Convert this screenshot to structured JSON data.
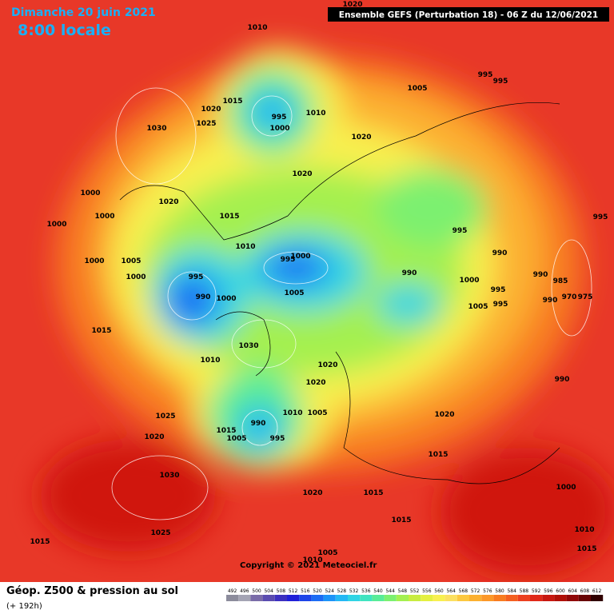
{
  "header": {
    "date": "Dimanche 20 juin 2021",
    "time": "8:00 locale",
    "model": "Ensemble GEFS  (Perturbation 18)  -  06 Z du 12/06/2021"
  },
  "footer": {
    "title": "Géop. Z500 & pression au sol",
    "lead": "(+ 192h)",
    "copyright": "Copyright © 2021 Meteociel.fr"
  },
  "scale": {
    "labels": [
      492,
      496,
      500,
      504,
      508,
      512,
      516,
      520,
      524,
      528,
      532,
      536,
      540,
      544,
      548,
      552,
      556,
      560,
      564,
      568,
      572,
      576,
      580,
      584,
      588,
      592,
      596,
      600,
      604,
      608,
      612
    ],
    "colors": [
      "#8c8c9c",
      "#a4a4b4",
      "#7a6ca8",
      "#5a4cb0",
      "#3c30c0",
      "#2020d8",
      "#1c44e8",
      "#1c6cf4",
      "#1c94f8",
      "#24b8f4",
      "#30d4e4",
      "#40e4c0",
      "#58ec98",
      "#7cf070",
      "#a4f050",
      "#c8ec40",
      "#e4f040",
      "#f8f050",
      "#fce060",
      "#fcc840",
      "#fcb030",
      "#fc9828",
      "#f87c20",
      "#f46020",
      "#ec4020",
      "#e02818",
      "#c81810",
      "#b01008",
      "#900808",
      "#680404",
      "#300000"
    ]
  },
  "isobar_labels": [
    1010,
    1020,
    995,
    995,
    1005,
    1015,
    1020,
    995,
    1010,
    1025,
    1030,
    1000,
    1020,
    1020,
    1000,
    1020,
    1000,
    1015,
    1000,
    995,
    1010,
    995,
    990,
    1000,
    1005,
    995,
    1000,
    995,
    1000,
    990,
    1000,
    990,
    985,
    990,
    1000,
    1005,
    995,
    1005,
    995,
    990,
    970,
    975,
    1015,
    1030,
    1010,
    1020,
    990,
    1020,
    1010,
    1005,
    990,
    1025,
    1020,
    1015,
    1020,
    1005,
    995,
    1015,
    1030,
    1000,
    1020,
    1015,
    1015,
    1025,
    1010,
    1015,
    1015,
    1005,
    1010
  ]
}
